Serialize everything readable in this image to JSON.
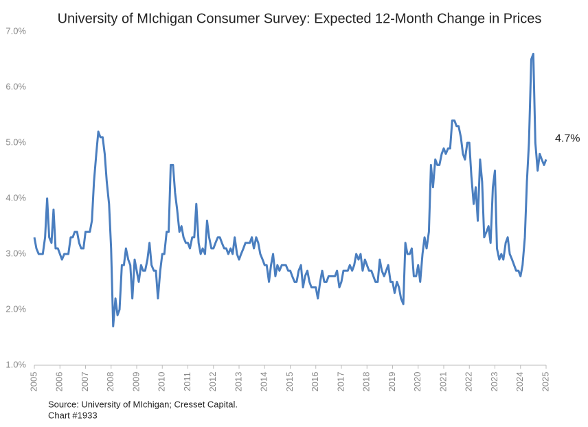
{
  "chart_data": {
    "type": "line",
    "title": "University of MIchigan Consumer Survey: Expected 12-Month Change in Prices",
    "source": "Source: University of MIchigan; Cresset Capital.",
    "chart_number": "Chart #1933",
    "annotation": "4.7%",
    "series": [
      {
        "name": "Expected 12-Month Change in Prices",
        "color": "#4a7ebf",
        "x": [
          2005.0,
          2005.08,
          2005.17,
          2005.25,
          2005.33,
          2005.42,
          2005.5,
          2005.58,
          2005.67,
          2005.75,
          2005.83,
          2005.92,
          2006.0,
          2006.08,
          2006.17,
          2006.25,
          2006.33,
          2006.42,
          2006.5,
          2006.58,
          2006.67,
          2006.75,
          2006.83,
          2006.92,
          2007.0,
          2007.08,
          2007.17,
          2007.25,
          2007.33,
          2007.42,
          2007.5,
          2007.58,
          2007.67,
          2007.75,
          2007.83,
          2007.92,
          2008.0,
          2008.08,
          2008.17,
          2008.25,
          2008.33,
          2008.42,
          2008.5,
          2008.58,
          2008.67,
          2008.75,
          2008.83,
          2008.92,
          2009.0,
          2009.08,
          2009.17,
          2009.25,
          2009.33,
          2009.42,
          2009.5,
          2009.58,
          2009.67,
          2009.75,
          2009.83,
          2009.92,
          2010.0,
          2010.08,
          2010.17,
          2010.25,
          2010.33,
          2010.42,
          2010.5,
          2010.58,
          2010.67,
          2010.75,
          2010.83,
          2010.92,
          2011.0,
          2011.08,
          2011.17,
          2011.25,
          2011.33,
          2011.42,
          2011.5,
          2011.58,
          2011.67,
          2011.75,
          2011.83,
          2011.92,
          2012.0,
          2012.08,
          2012.17,
          2012.25,
          2012.33,
          2012.42,
          2012.5,
          2012.58,
          2012.67,
          2012.75,
          2012.83,
          2012.92,
          2013.0,
          2013.08,
          2013.17,
          2013.25,
          2013.33,
          2013.42,
          2013.5,
          2013.58,
          2013.67,
          2013.75,
          2013.83,
          2013.92,
          2014.0,
          2014.08,
          2014.17,
          2014.25,
          2014.33,
          2014.42,
          2014.5,
          2014.58,
          2014.67,
          2014.75,
          2014.83,
          2014.92,
          2015.0,
          2015.08,
          2015.17,
          2015.25,
          2015.33,
          2015.42,
          2015.5,
          2015.58,
          2015.67,
          2015.75,
          2015.83,
          2015.92,
          2016.0,
          2016.08,
          2016.17,
          2016.25,
          2016.33,
          2016.42,
          2016.5,
          2016.58,
          2016.67,
          2016.75,
          2016.83,
          2016.92,
          2017.0,
          2017.08,
          2017.17,
          2017.25,
          2017.33,
          2017.42,
          2017.5,
          2017.58,
          2017.67,
          2017.75,
          2017.83,
          2017.92,
          2018.0,
          2018.08,
          2018.17,
          2018.25,
          2018.33,
          2018.42,
          2018.5,
          2018.58,
          2018.67,
          2018.75,
          2018.83,
          2018.92,
          2019.0,
          2019.08,
          2019.17,
          2019.25,
          2019.33,
          2019.42,
          2019.5,
          2019.58,
          2019.67,
          2019.75,
          2019.83,
          2019.92,
          2020.0,
          2020.08,
          2020.17,
          2020.25,
          2020.33,
          2020.42,
          2020.5,
          2020.58,
          2020.67,
          2020.75,
          2020.83,
          2020.92,
          2021.0,
          2021.08,
          2021.17,
          2021.25,
          2021.33,
          2021.42,
          2021.5,
          2021.58,
          2021.67,
          2021.75,
          2021.83,
          2021.92,
          2022.0,
          2022.08,
          2022.17,
          2022.25,
          2022.33,
          2022.42,
          2022.5,
          2022.58,
          2022.67,
          2022.75,
          2022.83,
          2022.92,
          2023.0,
          2023.08,
          2023.17,
          2023.25,
          2023.33,
          2023.42,
          2023.5,
          2023.58,
          2023.67,
          2023.75,
          2023.83,
          2023.92,
          2024.0,
          2024.08,
          2024.17,
          2024.25,
          2024.33,
          2024.42,
          2024.5,
          2024.58,
          2024.67,
          2024.75,
          2024.83,
          2024.92,
          2025.0
        ],
        "values": [
          3.3,
          3.1,
          3.0,
          3.0,
          3.0,
          3.3,
          4.0,
          3.3,
          3.2,
          3.8,
          3.1,
          3.1,
          3.0,
          2.9,
          3.0,
          3.0,
          3.0,
          3.3,
          3.3,
          3.4,
          3.4,
          3.2,
          3.1,
          3.1,
          3.4,
          3.4,
          3.4,
          3.6,
          4.3,
          4.8,
          5.2,
          5.1,
          5.1,
          4.8,
          4.3,
          3.9,
          3.1,
          1.7,
          2.2,
          1.9,
          2.0,
          2.8,
          2.8,
          3.1,
          2.9,
          2.8,
          2.2,
          2.9,
          2.7,
          2.5,
          2.8,
          2.7,
          2.7,
          2.9,
          3.2,
          2.8,
          2.7,
          2.7,
          2.2,
          2.7,
          3.0,
          3.0,
          3.4,
          3.4,
          4.6,
          4.6,
          4.1,
          3.8,
          3.4,
          3.5,
          3.3,
          3.2,
          3.2,
          3.1,
          3.3,
          3.3,
          3.9,
          3.2,
          3.0,
          3.1,
          3.0,
          3.6,
          3.3,
          3.1,
          3.1,
          3.2,
          3.3,
          3.3,
          3.2,
          3.1,
          3.1,
          3.0,
          3.1,
          3.0,
          3.3,
          3.0,
          2.9,
          3.0,
          3.1,
          3.2,
          3.2,
          3.2,
          3.3,
          3.1,
          3.3,
          3.2,
          3.0,
          2.9,
          2.8,
          2.8,
          2.5,
          2.8,
          3.0,
          2.6,
          2.8,
          2.7,
          2.8,
          2.8,
          2.8,
          2.7,
          2.7,
          2.6,
          2.5,
          2.5,
          2.7,
          2.8,
          2.4,
          2.6,
          2.7,
          2.5,
          2.4,
          2.4,
          2.4,
          2.2,
          2.5,
          2.7,
          2.5,
          2.5,
          2.6,
          2.6,
          2.6,
          2.6,
          2.7,
          2.4,
          2.5,
          2.7,
          2.7,
          2.7,
          2.8,
          2.7,
          2.8,
          3.0,
          2.9,
          3.0,
          2.7,
          2.9,
          2.8,
          2.7,
          2.7,
          2.6,
          2.5,
          2.5,
          2.9,
          2.7,
          2.6,
          2.7,
          2.8,
          2.5,
          2.5,
          2.3,
          2.5,
          2.4,
          2.2,
          2.1,
          3.2,
          3.0,
          3.0,
          3.1,
          2.6,
          2.6,
          2.8,
          2.5,
          3.0,
          3.3,
          3.1,
          3.4,
          4.6,
          4.2,
          4.7,
          4.6,
          4.6,
          4.8,
          4.9,
          4.8,
          4.9,
          4.9,
          5.4,
          5.4,
          5.3,
          5.3,
          5.1,
          4.8,
          4.7,
          5.0,
          5.0,
          4.4,
          3.9,
          4.2,
          3.6,
          4.7,
          4.3,
          3.3,
          3.4,
          3.5,
          3.2,
          4.2,
          4.5,
          3.1,
          2.9,
          3.0,
          2.9,
          3.2,
          3.3,
          3.0,
          2.9,
          2.8,
          2.7,
          2.7,
          2.6,
          2.8,
          3.3,
          4.3,
          5.0,
          6.5,
          6.6,
          5.0,
          4.5,
          4.8,
          4.7,
          4.6,
          4.7
        ]
      }
    ],
    "xlim": [
      2005,
      2025
    ],
    "xticks": [
      2005,
      2006,
      2007,
      2008,
      2009,
      2010,
      2011,
      2012,
      2013,
      2014,
      2015,
      2016,
      2017,
      2018,
      2019,
      2020,
      2021,
      2022,
      2023,
      2024,
      2025
    ],
    "ylim": [
      1,
      7
    ],
    "yticks": [
      {
        "value": 1,
        "label": "1.0%"
      },
      {
        "value": 2,
        "label": "2.0%"
      },
      {
        "value": 3,
        "label": "3.0%"
      },
      {
        "value": 4,
        "label": "4.0%"
      },
      {
        "value": 5,
        "label": "5.0%"
      },
      {
        "value": 6,
        "label": "6.0%"
      },
      {
        "value": 7,
        "label": "7.0%"
      }
    ],
    "grid": false
  }
}
